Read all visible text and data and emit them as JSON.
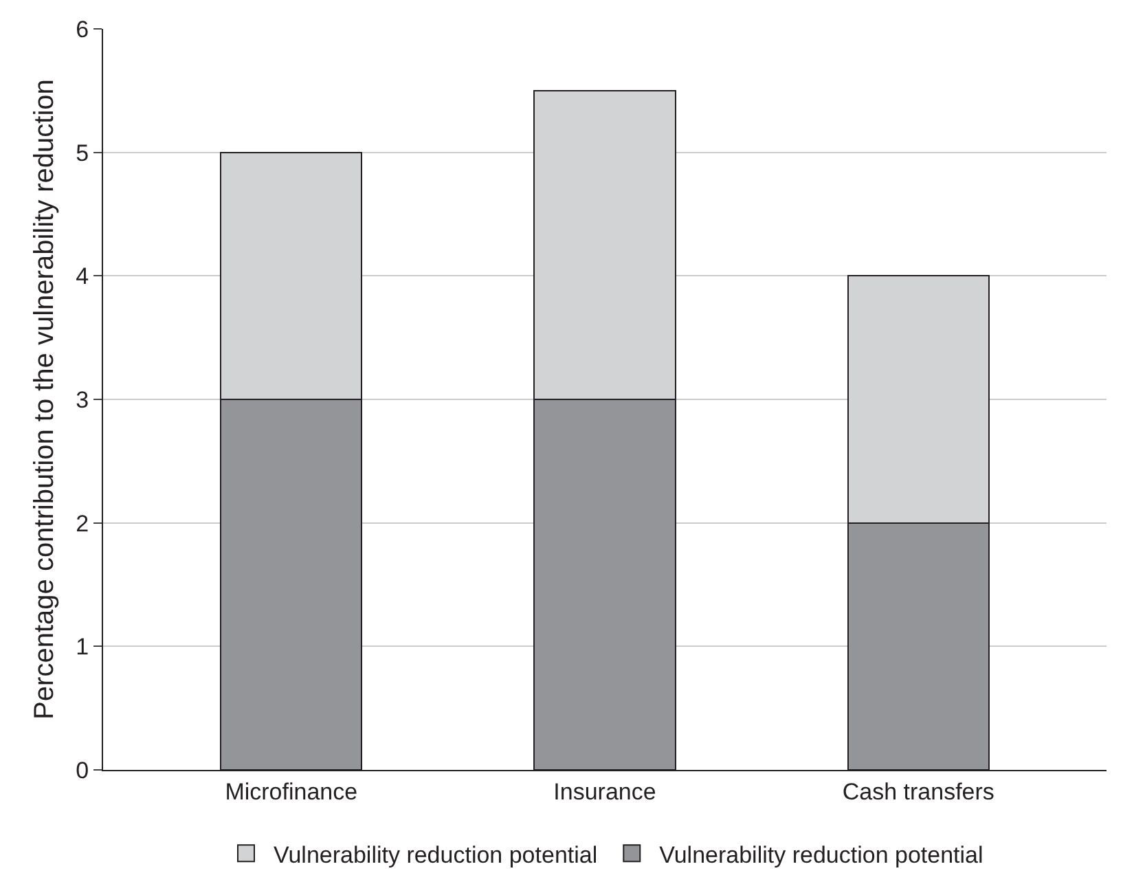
{
  "chart_data": {
    "type": "bar",
    "stacked": true,
    "ylabel": "Percentage contribution to the vulnerability reduction",
    "categories": [
      "Microfinance",
      "Insurance",
      "Cash transfers"
    ],
    "series": [
      {
        "name": "Vulnerability reduction potential",
        "color": "#939598",
        "values": [
          3,
          3,
          2
        ]
      },
      {
        "name": "Vulnerability reduction potential",
        "color": "#d1d3d4",
        "values": [
          2,
          2.5,
          2
        ]
      }
    ],
    "ylim": [
      0,
      6
    ],
    "yticks": [
      0,
      1,
      2,
      3,
      4,
      5,
      6
    ],
    "grid": "y",
    "legend": "bottom"
  }
}
